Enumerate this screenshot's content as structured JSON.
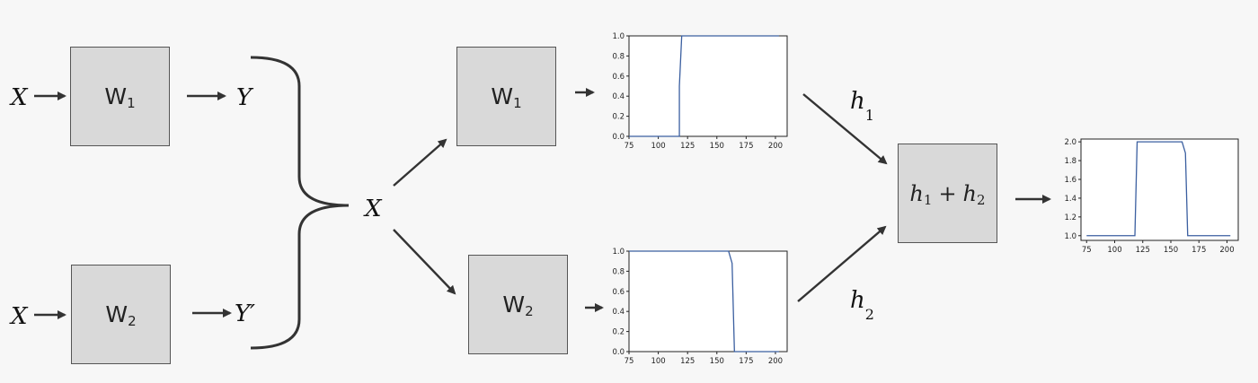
{
  "diagram": {
    "left_top": {
      "input": "X",
      "box_label": "W",
      "box_sub": "1",
      "output": "Y"
    },
    "left_bottom": {
      "input": "X",
      "box_label": "W",
      "box_sub": "2",
      "output": "Y′"
    },
    "merged": {
      "label": "X"
    },
    "mid_top": {
      "box_label": "W",
      "box_sub": "1"
    },
    "mid_bottom": {
      "box_label": "W",
      "box_sub": "2"
    },
    "h1": {
      "label": "h",
      "sub": "1"
    },
    "h2": {
      "label": "h",
      "sub": "2"
    },
    "sum_box": {
      "a": "h",
      "a_sub": "1",
      "op": "+",
      "b": "h",
      "b_sub": "2"
    }
  },
  "chart_data": [
    {
      "id": "plot-top",
      "type": "line",
      "x": [
        75,
        118,
        118,
        120,
        203
      ],
      "y": [
        0.0,
        0.0,
        0.5,
        1.0,
        1.0
      ],
      "xlim": [
        75,
        210
      ],
      "ylim": [
        0.0,
        1.0
      ],
      "xticks": [
        75,
        100,
        125,
        150,
        175,
        200
      ],
      "yticks": [
        0.0,
        0.2,
        0.4,
        0.6,
        0.8,
        1.0
      ],
      "xticklabels": [
        "75",
        "100",
        "125",
        "150",
        "175",
        "200"
      ],
      "yticklabels": [
        "0.0",
        "0.2",
        "0.4",
        "0.6",
        "0.8",
        "1.0"
      ],
      "color": "#3b5fa0",
      "grid": false
    },
    {
      "id": "plot-bottom",
      "type": "line",
      "x": [
        75,
        160,
        163,
        165,
        203
      ],
      "y": [
        1.0,
        1.0,
        0.88,
        0.0,
        0.0
      ],
      "xlim": [
        75,
        210
      ],
      "ylim": [
        0.0,
        1.0
      ],
      "xticks": [
        75,
        100,
        125,
        150,
        175,
        200
      ],
      "yticks": [
        0.0,
        0.2,
        0.4,
        0.6,
        0.8,
        1.0
      ],
      "xticklabels": [
        "75",
        "100",
        "125",
        "150",
        "175",
        "200"
      ],
      "yticklabels": [
        "0.0",
        "0.2",
        "0.4",
        "0.6",
        "0.8",
        "1.0"
      ],
      "color": "#3b5fa0",
      "grid": false
    },
    {
      "id": "plot-sum",
      "type": "line",
      "x": [
        75,
        118,
        120,
        160,
        163,
        165,
        203
      ],
      "y": [
        1.0,
        1.0,
        2.0,
        2.0,
        1.88,
        1.0,
        1.0
      ],
      "xlim": [
        70,
        210
      ],
      "ylim": [
        0.95,
        2.03
      ],
      "xticks": [
        75,
        100,
        125,
        150,
        175,
        200
      ],
      "yticks": [
        1.0,
        1.2,
        1.4,
        1.6,
        1.8,
        2.0
      ],
      "xticklabels": [
        "75",
        "100",
        "125",
        "150",
        "175",
        "200"
      ],
      "yticklabels": [
        "1.0",
        "1.2",
        "1.4",
        "1.6",
        "1.8",
        "2.0"
      ],
      "color": "#3b5fa0",
      "grid": false
    }
  ]
}
